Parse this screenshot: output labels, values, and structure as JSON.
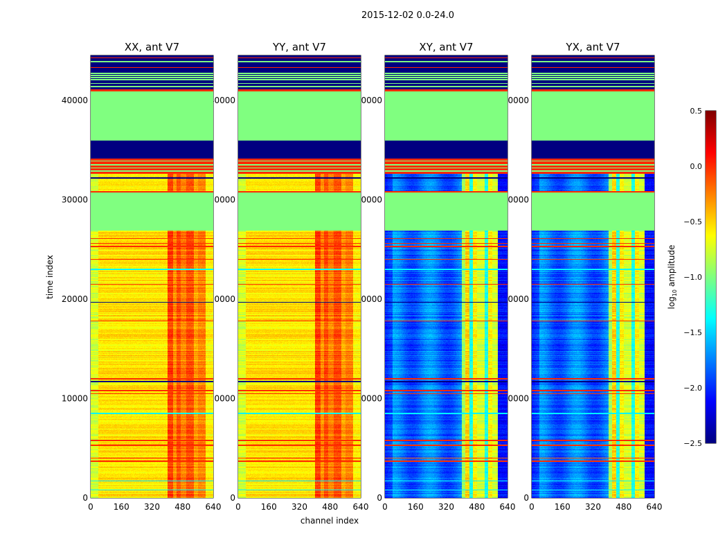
{
  "chart_data": {
    "type": "heatmap",
    "title": "2015-12-02 0.0-24.0",
    "xlabel": "channel index",
    "ylabel": "time index",
    "xlim": [
      0,
      640
    ],
    "ylim": [
      0,
      44530
    ],
    "xticks": [
      "0",
      "160",
      "320",
      "480",
      "640"
    ],
    "yticks": [
      "0",
      "10000",
      "20000",
      "30000",
      "40000"
    ],
    "panels": [
      {
        "title": "XX, ant V7",
        "mode": "parallel"
      },
      {
        "title": "YY, ant V7",
        "mode": "parallel"
      },
      {
        "title": "XY, ant V7",
        "mode": "cross"
      },
      {
        "title": "YX, ant V7",
        "mode": "cross"
      }
    ],
    "bands": [
      {
        "t0": 0,
        "t1": 26900,
        "value": "active"
      },
      {
        "t0": 26900,
        "t1": 30700,
        "value": -1.0
      },
      {
        "t0": 30700,
        "t1": 32600,
        "value": "active"
      },
      {
        "t0": 32600,
        "t1": 34150,
        "value": 0.0
      },
      {
        "t0": 34150,
        "t1": 35960,
        "value": -2.5
      },
      {
        "t0": 35960,
        "t1": 40900,
        "value": -1.0
      },
      {
        "t0": 40900,
        "t1": 41100,
        "value": 0.0
      },
      {
        "t0": 41100,
        "t1": 44530,
        "value": -2.5
      }
    ],
    "line_features": [
      {
        "t": 44300,
        "value": 0.0
      },
      {
        "t": 43900,
        "value": -1.0
      },
      {
        "t": 43300,
        "value": 0.0
      },
      {
        "t": 42700,
        "value": -1.0
      },
      {
        "t": 42500,
        "value": -1.0
      },
      {
        "t": 42300,
        "value": -1.0
      },
      {
        "t": 42100,
        "value": -1.0
      },
      {
        "t": 41700,
        "value": -1.0
      },
      {
        "t": 41400,
        "value": -1.0
      },
      {
        "t": 33900,
        "value": -1.0
      },
      {
        "t": 33500,
        "value": -1.0
      },
      {
        "t": 33200,
        "value": -1.0
      },
      {
        "t": 32900,
        "value": -1.0
      },
      {
        "t": 32200,
        "value": -2.5
      },
      {
        "t": 30800,
        "value": 0.0
      },
      {
        "t": 26100,
        "value": 0.0
      },
      {
        "t": 25600,
        "value": 0.0
      },
      {
        "t": 25300,
        "value": 0.0
      },
      {
        "t": 24000,
        "value": 0.0
      },
      {
        "t": 23000,
        "value": -1.4
      },
      {
        "t": 21500,
        "value": 0.0
      },
      {
        "t": 19700,
        "value": -2.5
      },
      {
        "t": 17800,
        "value": 0.0
      },
      {
        "t": 12000,
        "value": 0.0
      },
      {
        "t": 11700,
        "value": -2.5
      },
      {
        "t": 10800,
        "value": 0.0
      },
      {
        "t": 10500,
        "value": 0.0
      },
      {
        "t": 8500,
        "value": -1.4
      },
      {
        "t": 5800,
        "value": 0.0
      },
      {
        "t": 5300,
        "value": 0.0
      },
      {
        "t": 4000,
        "value": 0.0
      },
      {
        "t": 3700,
        "value": 0.0
      },
      {
        "t": 1700,
        "value": -1.4
      },
      {
        "t": 800,
        "value": -1.4
      }
    ],
    "active_profiles": {
      "parallel": {
        "base": -0.55,
        "edge": -0.75,
        "columns": [
          {
            "c0": 400,
            "c1": 430,
            "value": -0.05
          },
          {
            "c0": 430,
            "c1": 450,
            "value": -0.3
          },
          {
            "c0": 450,
            "c1": 470,
            "value": -0.1
          },
          {
            "c0": 470,
            "c1": 500,
            "value": -0.25
          },
          {
            "c0": 500,
            "c1": 540,
            "value": -0.1
          },
          {
            "c0": 540,
            "c1": 560,
            "value": -0.35
          },
          {
            "c0": 560,
            "c1": 600,
            "value": -0.25
          },
          {
            "c0": 600,
            "c1": 640,
            "value": -0.6
          }
        ]
      },
      "cross": {
        "base": -1.8,
        "edge": -2.05,
        "columns": [
          {
            "c0": 400,
            "c1": 420,
            "value": -0.9
          },
          {
            "c0": 420,
            "c1": 440,
            "value": -0.5
          },
          {
            "c0": 440,
            "c1": 460,
            "value": -1.3
          },
          {
            "c0": 460,
            "c1": 480,
            "value": -0.6
          },
          {
            "c0": 480,
            "c1": 520,
            "value": -0.75
          },
          {
            "c0": 520,
            "c1": 540,
            "value": -1.3
          },
          {
            "c0": 540,
            "c1": 560,
            "value": -0.6
          },
          {
            "c0": 560,
            "c1": 590,
            "value": -0.75
          },
          {
            "c0": 590,
            "c1": 640,
            "value": -2.1
          }
        ]
      }
    },
    "colorbar": {
      "label": "log10 amplitude",
      "label_main": "log",
      "label_sub": "10",
      "label_rest": " amplitude",
      "range": [
        -2.5,
        0.5
      ],
      "colormap": "jet",
      "ticks": [
        "0.5",
        "0.0",
        "−0.5",
        "−1.0",
        "−1.5",
        "−2.0",
        "−2.5"
      ],
      "tick_values": [
        0.5,
        0.0,
        -0.5,
        -1.0,
        -1.5,
        -2.0,
        -2.5
      ]
    }
  }
}
